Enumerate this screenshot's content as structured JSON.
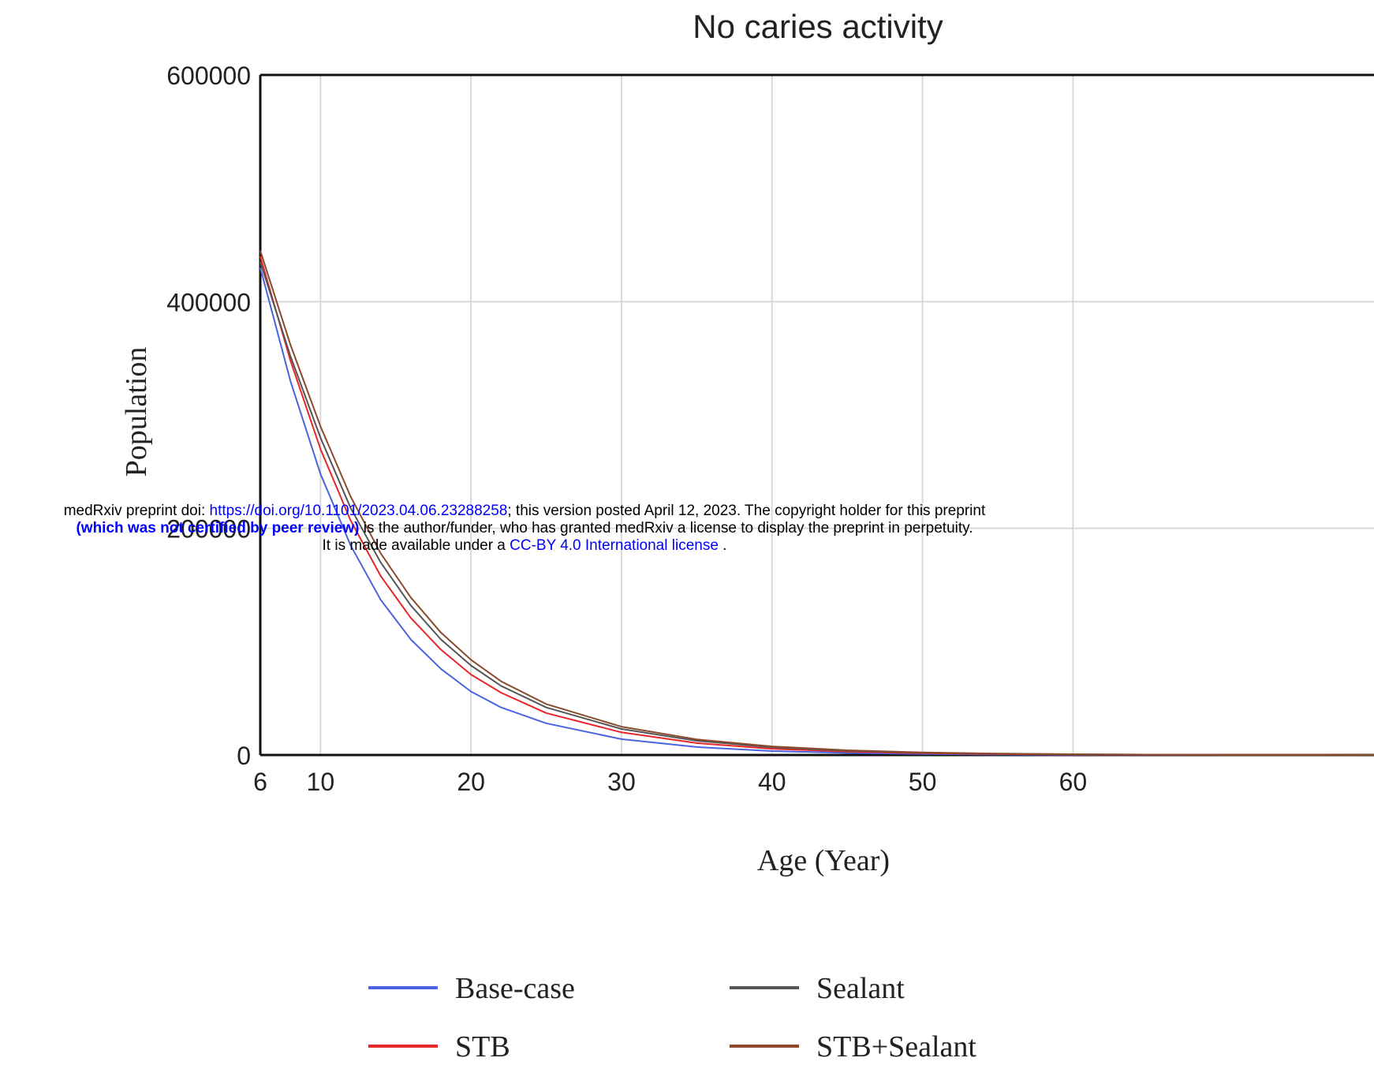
{
  "notice": {
    "line1_prefix": "medRxiv preprint doi: ",
    "doi_link": "https://doi.org/10.1101/2023.04.06.23288258",
    "line1_suffix": "; this version posted April 12, 2023. The copyright holder for this preprint",
    "line2_bold": "(which was not certified by peer review)",
    "line2_rest": " is the author/funder, who has granted medRxiv a license to display the preprint in perpetuity.",
    "line3_prefix": "It is made available under a ",
    "license_link": "CC-BY 4.0 International license",
    "line3_suffix": " ."
  },
  "chart_data": {
    "type": "line",
    "title": "No caries activity",
    "xlabel": "Age (Year)",
    "ylabel": "Population",
    "xlim": [
      6,
      80
    ],
    "ylim": [
      0,
      600000
    ],
    "x_ticks": [
      6,
      10,
      20,
      30,
      40,
      50,
      60
    ],
    "y_ticks": [
      0,
      200000,
      400000,
      600000
    ],
    "x": [
      6,
      8,
      10,
      12,
      14,
      16,
      18,
      20,
      22,
      25,
      30,
      35,
      40,
      45,
      50,
      55,
      60,
      65,
      70,
      75,
      80
    ],
    "grid": true,
    "legend_position": "bottom",
    "series": [
      {
        "name": "Base-case",
        "color": "#4a63e0",
        "values": [
          430000,
          330000,
          248000,
          185000,
          137000,
          102000,
          76000,
          56000,
          42000,
          28000,
          14000,
          7000,
          3500,
          1800,
          900,
          450,
          220,
          110,
          60,
          30,
          15
        ]
      },
      {
        "name": "STB",
        "color": "#e8262a",
        "values": [
          440000,
          348000,
          270000,
          207000,
          158000,
          121000,
          93000,
          71000,
          55000,
          37000,
          20000,
          10500,
          5500,
          2900,
          1500,
          800,
          420,
          220,
          110,
          60,
          30
        ]
      },
      {
        "name": "Sealant",
        "color": "#555555",
        "values": [
          435000,
          352000,
          280000,
          218000,
          170000,
          132000,
          102000,
          79000,
          61000,
          42000,
          23000,
          12500,
          6800,
          3700,
          2000,
          1100,
          600,
          320,
          170,
          90,
          50
        ]
      },
      {
        "name": "STB+Sealant",
        "color": "#8b4a2b",
        "values": [
          445000,
          362000,
          290000,
          228000,
          178000,
          139000,
          108000,
          84000,
          65000,
          45000,
          25000,
          13800,
          7600,
          4200,
          2300,
          1250,
          690,
          380,
          210,
          115,
          65
        ]
      }
    ]
  }
}
